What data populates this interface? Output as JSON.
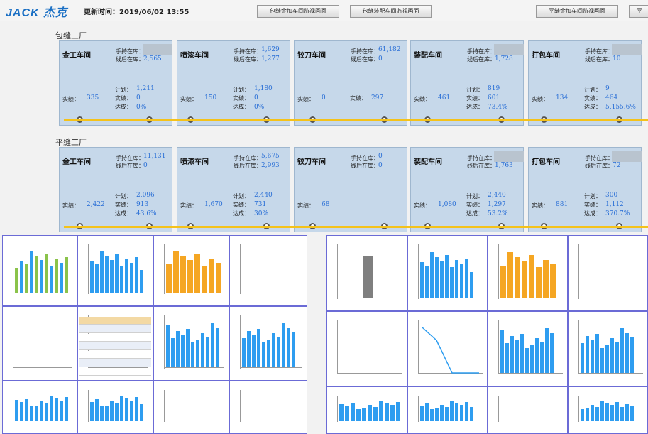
{
  "header": {
    "logo": "JACK 杰克",
    "update": "更新时间：2019/06/02 13:55",
    "buttons": [
      "包缝金加车间监视画面",
      "包缝装配车间监视画面",
      "平缝金加车间监视画面",
      "平"
    ]
  },
  "factories": [
    {
      "name": "包缝工厂",
      "workshops": [
        {
          "name": "金工车间",
          "hand_label": "手持在库：",
          "hand": "",
          "after_label": "线后在库：",
          "after": "2,565",
          "actual_label": "实绩：",
          "actual": "335",
          "plan_label": "计划：",
          "plan": "1,211",
          "real_label": "实绩：",
          "real": "0",
          "rate_label": "达成：",
          "rate": "0%"
        },
        {
          "name": "喷漆车间",
          "hand_label": "手持在库：",
          "hand": "1,629",
          "after_label": "线后在库：",
          "after": "1,277",
          "actual_label": "实绩：",
          "actual": "150",
          "plan_label": "计划：",
          "plan": "1,180",
          "real_label": "实绩：",
          "real": "0",
          "rate_label": "达成：",
          "rate": "0%"
        },
        {
          "name": "铰刀车间",
          "hand_label": "手持在库：",
          "hand": "61,182",
          "after_label": "线后在库：",
          "after": "0",
          "actual_label": "实绩：",
          "actual": "0",
          "plan_label": "",
          "plan": "",
          "real_label": "实绩：",
          "real": "297",
          "rate_label": "",
          "rate": ""
        },
        {
          "name": "装配车间",
          "hand_label": "手持在库：",
          "hand": "",
          "after_label": "线后在库：",
          "after": "1,728",
          "actual_label": "实绩：",
          "actual": "461",
          "plan_label": "计划：",
          "plan": "819",
          "real_label": "实绩：",
          "real": "601",
          "rate_label": "达成：",
          "rate": "73.4%"
        },
        {
          "name": "打包车间",
          "hand_label": "手持在库：",
          "hand": "",
          "after_label": "线后在库：",
          "after": "10",
          "actual_label": "实绩：",
          "actual": "134",
          "plan_label": "计划：",
          "plan": "9",
          "real_label": "实绩：",
          "real": "464",
          "rate_label": "达成：",
          "rate": "5,155.6%"
        }
      ]
    },
    {
      "name": "平缝工厂",
      "workshops": [
        {
          "name": "金工车间",
          "hand_label": "手持在库：",
          "hand": "11,131",
          "after_label": "线后在库：",
          "after": "0",
          "actual_label": "实绩：",
          "actual": "2,422",
          "plan_label": "计划：",
          "plan": "2,096",
          "real_label": "实绩：",
          "real": "913",
          "rate_label": "达成：",
          "rate": "43.6%"
        },
        {
          "name": "喷漆车间",
          "hand_label": "手持在库：",
          "hand": "5,675",
          "after_label": "线后在库：",
          "after": "2,993",
          "actual_label": "实绩：",
          "actual": "1,670",
          "plan_label": "计划：",
          "plan": "2,440",
          "real_label": "实绩：",
          "real": "731",
          "rate_label": "达成：",
          "rate": "30%"
        },
        {
          "name": "铰刀车间",
          "hand_label": "手持在库：",
          "hand": "0",
          "after_label": "线后在库：",
          "after": "0",
          "actual_label": "实绩：",
          "actual": "68",
          "plan_label": "",
          "plan": "",
          "real_label": "",
          "real": "",
          "rate_label": "",
          "rate": ""
        },
        {
          "name": "装配车间",
          "hand_label": "手持在库：",
          "hand": "",
          "after_label": "线后在库：",
          "after": "1,763",
          "actual_label": "实绩：",
          "actual": "1,080",
          "plan_label": "计划：",
          "plan": "2,440",
          "real_label": "实绩：",
          "real": "1,297",
          "rate_label": "达成：",
          "rate": "53.2%"
        },
        {
          "name": "打包车间",
          "hand_label": "手持在库：",
          "hand": "",
          "after_label": "线后在库：",
          "after": "72",
          "actual_label": "实绩：",
          "actual": "881",
          "plan_label": "计划：",
          "plan": "300",
          "real_label": "实绩：",
          "real": "1,112",
          "rate_label": "达成：",
          "rate": "370.7%"
        }
      ]
    }
  ],
  "colors": {
    "panel": "#c6d8ea",
    "value": "#2a6fd6",
    "flow": "#f4c21a",
    "bar_blue": "#2e9df0",
    "bar_orange": "#f5a623",
    "bar_green": "#8bc34a",
    "bar_gray": "#7f7f7f"
  }
}
